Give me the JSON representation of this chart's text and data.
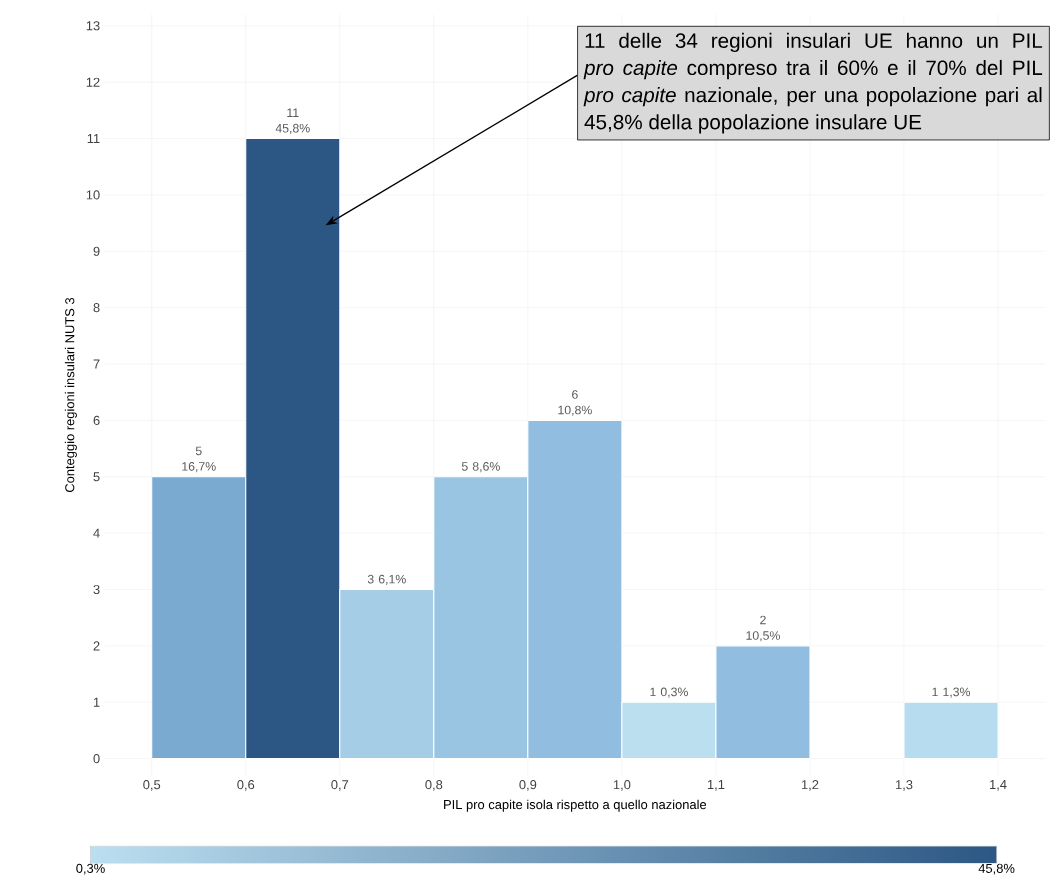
{
  "chart_data": {
    "type": "histogram",
    "xlabel": "PIL pro capite isola rispetto a quello nazionale",
    "ylabel": "Conteggio regioni insulari NUTS 3",
    "bins": [
      0.5,
      0.6,
      0.7,
      0.8,
      0.9,
      1.0,
      1.1,
      1.2,
      1.3,
      1.4
    ],
    "values": [
      5,
      11,
      3,
      5,
      6,
      1,
      2,
      0,
      1
    ],
    "value_labels": [
      "5 16,7%",
      "11 45,8%",
      "3 6,1%",
      "5 8,6%",
      "6 10,8%",
      "1 0,3%",
      "2 10,5%",
      null,
      "1 1,3%"
    ],
    "colors": [
      "#7aaad0",
      "#2c5784",
      "#a6cde6",
      "#99c4e2",
      "#90bde0",
      "#bcdff0",
      "#90bde0",
      "#ffffff",
      "#b7dbef"
    ],
    "clim": [
      0.3,
      45.8
    ],
    "cticks": [
      {
        "value": 0.3,
        "label": "0,3%"
      },
      {
        "value": 45.8,
        "label": "45,8%"
      }
    ],
    "xlim": [
      0.45,
      1.45
    ],
    "xticks": [
      {
        "value": 0.5,
        "label": "0,5"
      },
      {
        "value": 0.6,
        "label": "0,6"
      },
      {
        "value": 0.7,
        "label": "0,7"
      },
      {
        "value": 0.8,
        "label": "0,8"
      },
      {
        "value": 0.9,
        "label": "0,9"
      },
      {
        "value": 1.0,
        "label": "1,0"
      },
      {
        "value": 1.1,
        "label": "1,1"
      },
      {
        "value": 1.2,
        "label": "1,2"
      },
      {
        "value": 1.3,
        "label": "1,3"
      },
      {
        "value": 1.4,
        "label": "1,4"
      }
    ],
    "ylim": [
      -0.3,
      13.2
    ],
    "yticks": [
      0,
      1,
      2,
      3,
      4,
      5,
      6,
      7,
      8,
      9,
      10,
      11,
      12,
      13
    ],
    "grid": true,
    "annotations": [
      "11 delle 34 regioni insulari UE hanno un PIL *pro capite* compreso tra il 60% e il 70% del PIL *pro capite* nazionale, per una popolazione pari al 45,8% della popolazione insulare UE"
    ]
  }
}
